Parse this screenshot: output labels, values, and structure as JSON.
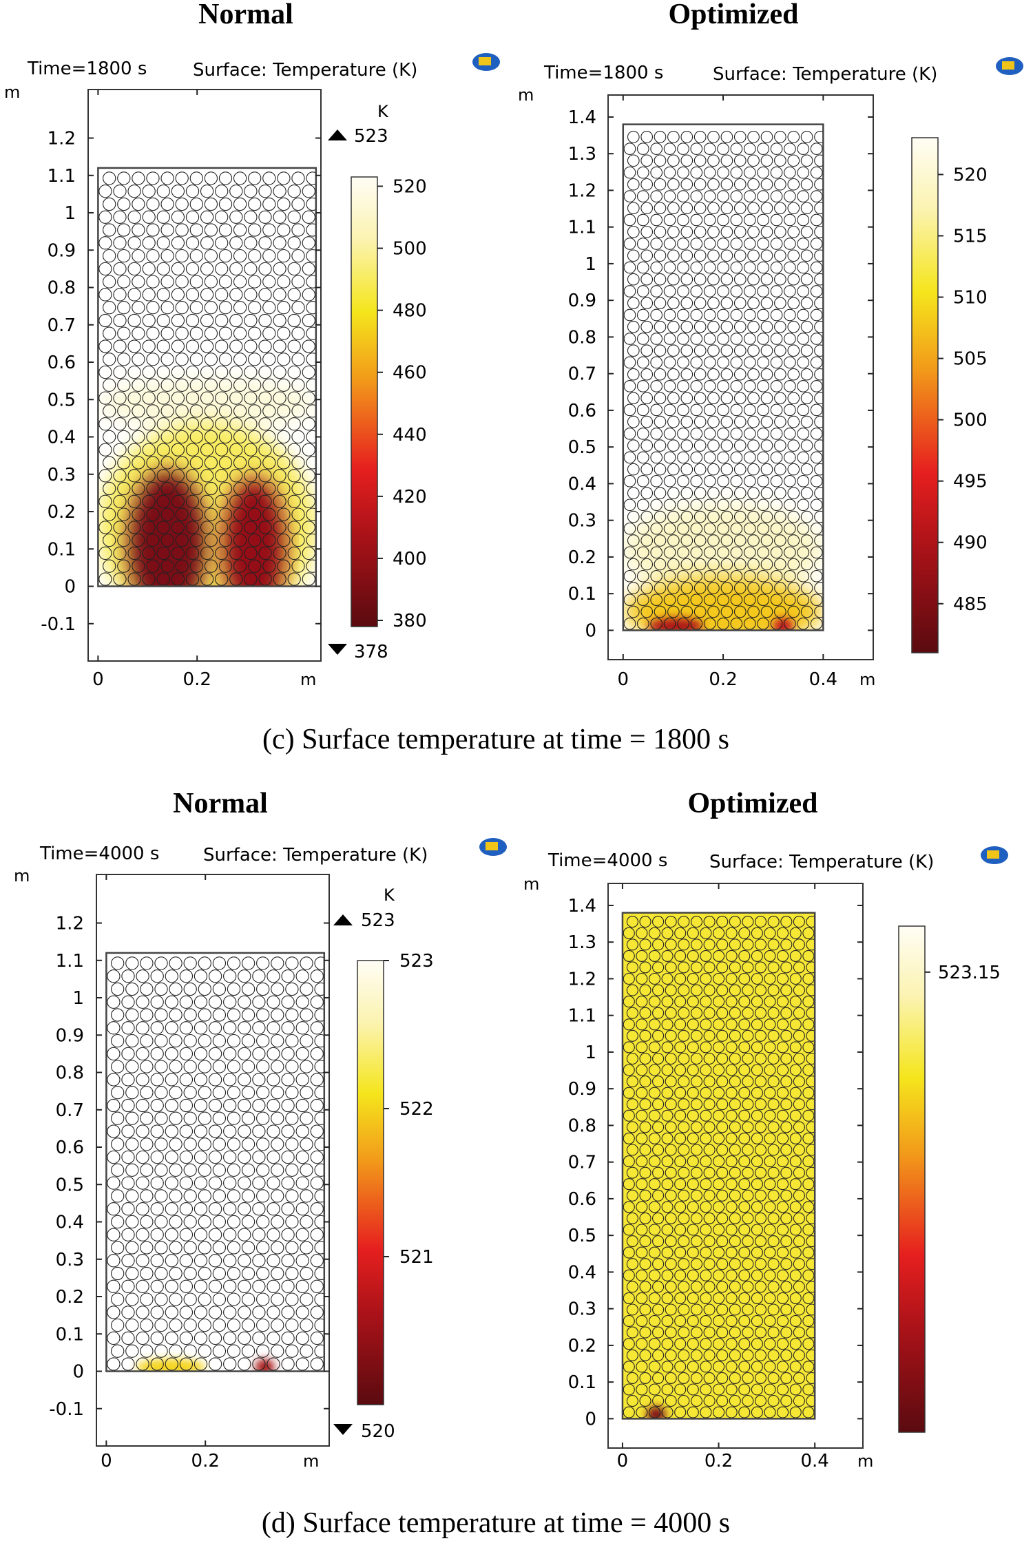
{
  "figure": {
    "caption_c": "(c) Surface temperature at time = 1800 s",
    "caption_d": "(d) Surface temperature at time = 4000 s"
  },
  "colors": {
    "dark_red": "#5a0b10",
    "red": "#e61f1f",
    "orange": "#f29a1a",
    "yellow": "#f5e51c",
    "pale": "#fbf3b0",
    "white": "#fffdf5",
    "frame": "#444444",
    "bubble": "#222222"
  },
  "chart_data": [
    {
      "id": "c-normal",
      "type": "heatmap",
      "panel_title": "Normal",
      "time_label": "Time=1800 s",
      "surface_label": "Surface: Temperature (K)",
      "x_unit_label": "m",
      "y_unit_label": "m",
      "x_ticks": [
        "0",
        "0.2"
      ],
      "x_range": [
        -0.02,
        0.45
      ],
      "y_ticks": [
        "-0.1",
        "0",
        "0.1",
        "0.2",
        "0.3",
        "0.4",
        "0.5",
        "0.6",
        "0.7",
        "0.8",
        "0.9",
        "1",
        "1.1",
        "1.2"
      ],
      "y_range": [
        -0.2,
        1.33
      ],
      "bed_extent": {
        "x": [
          0,
          0.44
        ],
        "y": [
          0,
          1.12
        ]
      },
      "colorbar": {
        "unit": "K",
        "max_label": "523",
        "min_label": "378",
        "ticks": [
          "520",
          "500",
          "480",
          "460",
          "440",
          "420",
          "400",
          "380"
        ],
        "range": [
          378,
          523
        ]
      },
      "hot_zones": [
        {
          "x": [
            0.0,
            0.44
          ],
          "y": [
            0.45,
            0.56
          ],
          "temp": 515
        },
        {
          "x": [
            0.0,
            0.44
          ],
          "y": [
            0.0,
            0.45
          ],
          "temp": 490
        },
        {
          "x": [
            0.06,
            0.22
          ],
          "y": [
            0.0,
            0.32
          ],
          "temp": 390
        },
        {
          "x": [
            0.25,
            0.38
          ],
          "y": [
            0.0,
            0.3
          ],
          "temp": 400
        }
      ]
    },
    {
      "id": "c-optimized",
      "type": "heatmap",
      "panel_title": "Optimized",
      "time_label": "Time=1800 s",
      "surface_label": "Surface: Temperature (K)",
      "x_unit_label": "m",
      "y_unit_label": "m",
      "x_ticks": [
        "0",
        "0.2",
        "0.4"
      ],
      "x_range": [
        -0.03,
        0.5
      ],
      "y_ticks": [
        "0",
        "0.1",
        "0.2",
        "0.3",
        "0.4",
        "0.5",
        "0.6",
        "0.7",
        "0.8",
        "0.9",
        "1",
        "1.1",
        "1.2",
        "1.3",
        "1.4"
      ],
      "y_range": [
        -0.08,
        1.46
      ],
      "bed_extent": {
        "x": [
          0,
          0.4
        ],
        "y": [
          0,
          1.38
        ]
      },
      "colorbar": {
        "unit": "",
        "max_label": "",
        "min_label": "",
        "ticks": [
          "520",
          "515",
          "510",
          "505",
          "500",
          "495",
          "490",
          "485"
        ],
        "range": [
          481,
          523
        ]
      },
      "hot_zones": [
        {
          "x": [
            0.0,
            0.4
          ],
          "y": [
            0.15,
            0.35
          ],
          "temp": 519
        },
        {
          "x": [
            0.0,
            0.4
          ],
          "y": [
            0.0,
            0.15
          ],
          "temp": 508
        },
        {
          "x": [
            0.05,
            0.16
          ],
          "y": [
            0.0,
            0.03
          ],
          "temp": 490
        },
        {
          "x": [
            0.3,
            0.34
          ],
          "y": [
            0.0,
            0.02
          ],
          "temp": 492
        }
      ]
    },
    {
      "id": "d-normal",
      "type": "heatmap",
      "panel_title": "Normal",
      "time_label": "Time=4000 s",
      "surface_label": "Surface: Temperature (K)",
      "x_unit_label": "m",
      "y_unit_label": "m",
      "x_ticks": [
        "0",
        "0.2"
      ],
      "x_range": [
        -0.02,
        0.45
      ],
      "y_ticks": [
        "-0.1",
        "0",
        "0.1",
        "0.2",
        "0.3",
        "0.4",
        "0.5",
        "0.6",
        "0.7",
        "0.8",
        "0.9",
        "1",
        "1.1",
        "1.2"
      ],
      "y_range": [
        -0.2,
        1.33
      ],
      "bed_extent": {
        "x": [
          0,
          0.44
        ],
        "y": [
          0,
          1.12
        ]
      },
      "colorbar": {
        "unit": "K",
        "max_label": "523",
        "min_label": "520",
        "ticks": [
          "523",
          "522",
          "521"
        ],
        "range": [
          520,
          523
        ]
      },
      "hot_zones": [
        {
          "x": [
            0.06,
            0.2
          ],
          "y": [
            0.0,
            0.02
          ],
          "temp": 522
        },
        {
          "x": [
            0.3,
            0.34
          ],
          "y": [
            0.0,
            0.02
          ],
          "temp": 520.6
        }
      ]
    },
    {
      "id": "d-optimized",
      "type": "heatmap",
      "panel_title": "Optimized",
      "time_label": "Time=4000 s",
      "surface_label": "Surface: Temperature (K)",
      "x_unit_label": "m",
      "y_unit_label": "m",
      "x_ticks": [
        "0",
        "0.2",
        "0.4"
      ],
      "x_range": [
        -0.03,
        0.5
      ],
      "y_ticks": [
        "0",
        "0.1",
        "0.2",
        "0.3",
        "0.4",
        "0.5",
        "0.6",
        "0.7",
        "0.8",
        "0.9",
        "1",
        "1.1",
        "1.2",
        "1.3",
        "1.4"
      ],
      "y_range": [
        -0.08,
        1.46
      ],
      "bed_extent": {
        "x": [
          0,
          0.4
        ],
        "y": [
          0,
          1.38
        ]
      },
      "uniform_temp": 523.148,
      "colorbar": {
        "unit": "",
        "max_label": "",
        "min_label": "",
        "ticks": [
          "523.15"
        ],
        "range": [
          523.14,
          523.151
        ]
      },
      "hot_zones": [
        {
          "x": [
            0.05,
            0.09
          ],
          "y": [
            0.0,
            0.02
          ],
          "temp": 523.141
        }
      ]
    }
  ]
}
